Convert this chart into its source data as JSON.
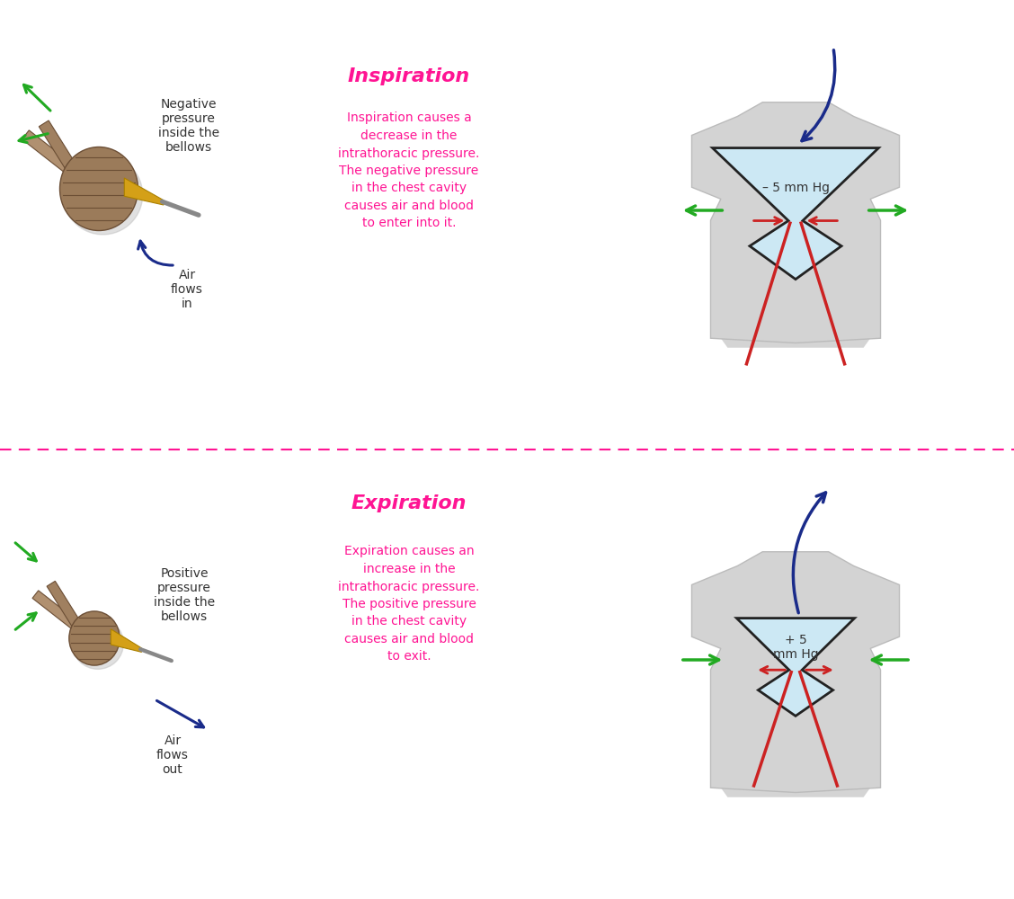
{
  "bg_color": "#ffffff",
  "divider_color": "#ff1493",
  "top_title": "Inspiration",
  "bottom_title": "Expiration",
  "title_color": "#ff1493",
  "top_description": "Inspiration causes a\ndecrease in the\nintrathoracic pressure.\nThe negative pressure\nin the chest cavity\ncauses air and blood\nto enter into it.",
  "bottom_description": "Expiration causes an\nincrease in the\nintrathoracic pressure.\nThe positive pressure\nin the chest cavity\ncauses air and blood\nto exit.",
  "desc_color": "#ff1493",
  "top_bellows_label": "Negative\npressure\ninside the\nbellows",
  "bottom_bellows_label": "Positive\npressure\ninside the\nbellows",
  "top_air_label": "Air\nflows\nin",
  "bottom_air_label": "Air\nflows\nout",
  "label_color": "#333333",
  "inspiration_pressure": "– 5 mm Hg",
  "expiration_pressure": "+ 5\nmm Hg",
  "lung_fill_color": "#cce8f4",
  "lung_outline_color": "#222222",
  "body_fill_color": "#d3d3d3",
  "arrow_blue_color": "#1a2b8a",
  "arrow_red_color": "#cc2222",
  "arrow_green_color": "#22aa22",
  "bellows_brown": "#9B7B5A",
  "bellows_dark": "#6B4E35",
  "bellows_gold": "#D4A017",
  "bellows_nozzle": "#888888"
}
